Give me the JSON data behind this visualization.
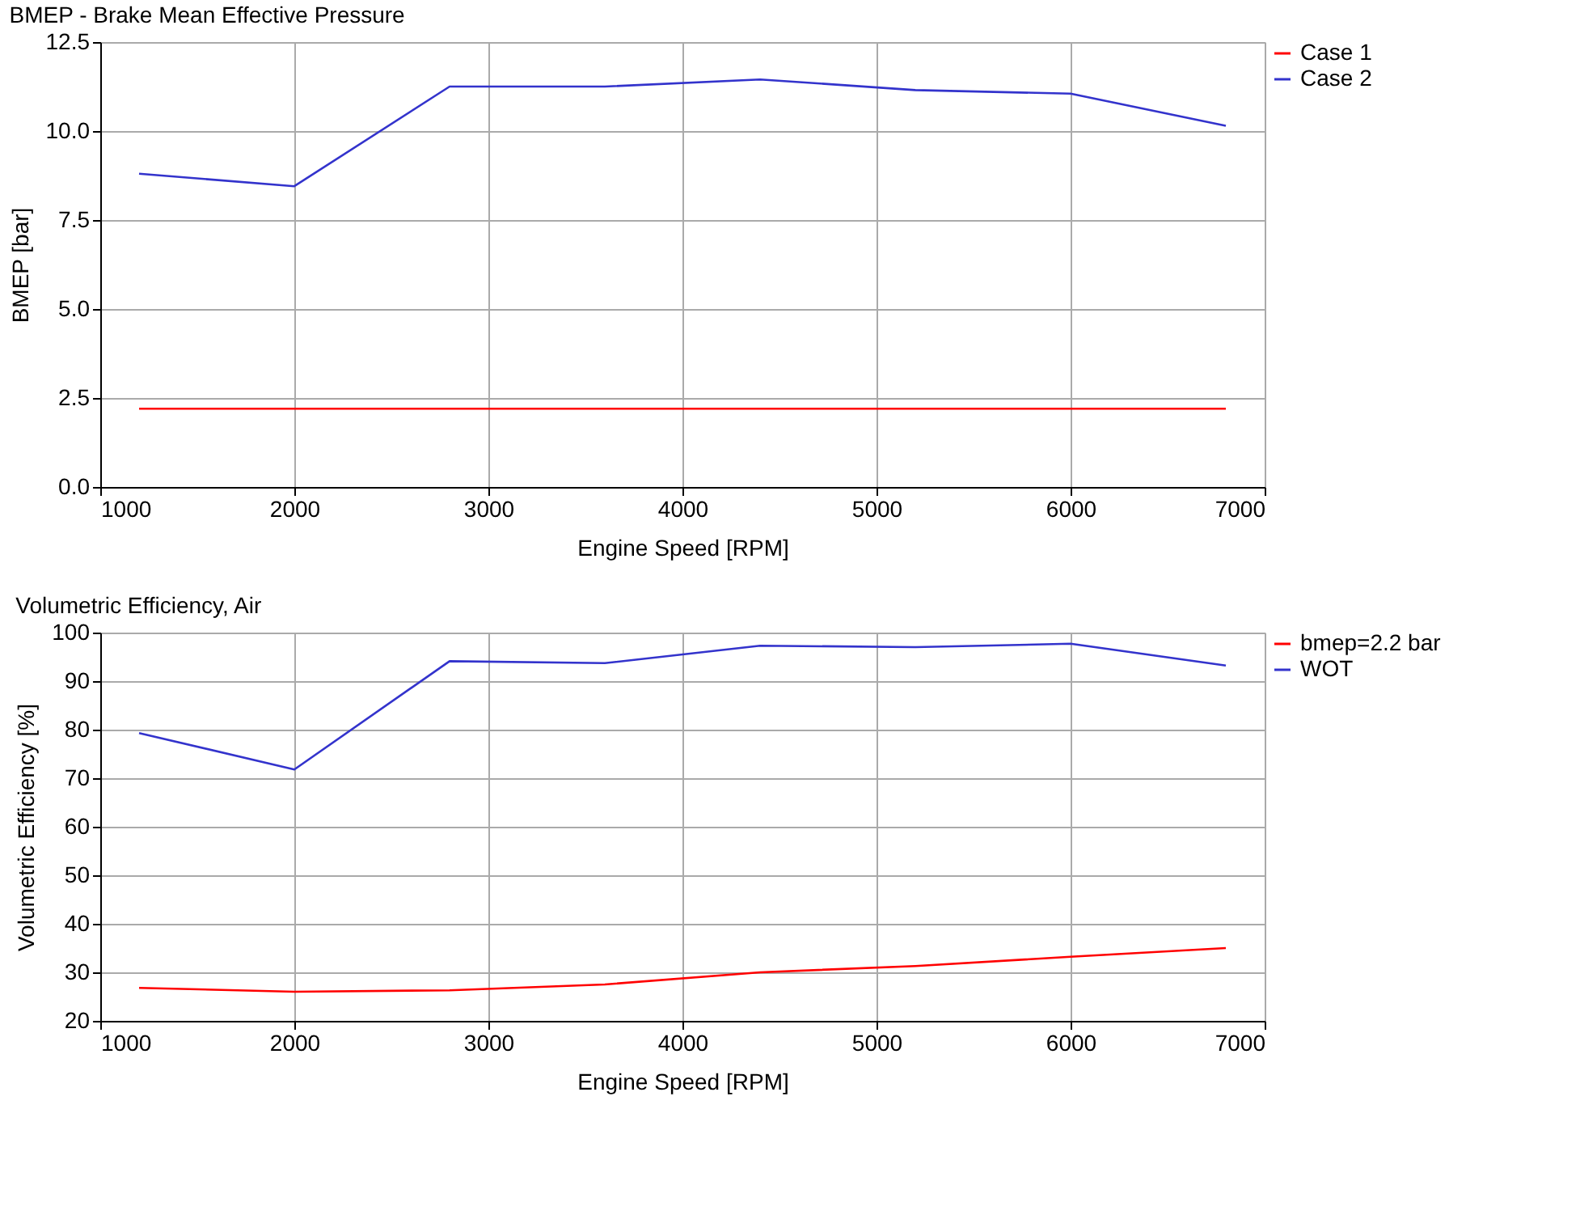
{
  "chart_data": [
    {
      "type": "line",
      "title": "BMEP - Brake Mean Effective Pressure",
      "xlabel": "Engine Speed [RPM]",
      "ylabel": "BMEP [bar]",
      "x": [
        1200,
        2000,
        2800,
        3600,
        4400,
        5200,
        6000,
        6800
      ],
      "series": [
        {
          "name": "Case 1",
          "color": "#ff0000",
          "values": [
            2.2,
            2.2,
            2.2,
            2.2,
            2.2,
            2.2,
            2.2,
            2.2
          ]
        },
        {
          "name": "Case 2",
          "color": "#3333cc",
          "values": [
            8.8,
            8.45,
            11.25,
            11.25,
            11.45,
            11.15,
            11.05,
            10.15
          ]
        }
      ],
      "xlim": [
        1000,
        7000
      ],
      "xticks": [
        1000,
        2000,
        3000,
        4000,
        5000,
        6000,
        7000
      ],
      "ylim": [
        0,
        12.5
      ],
      "yticks": [
        {
          "value": 0,
          "label": "0.0"
        },
        2.5,
        {
          "value": 5,
          "label": "5.0"
        },
        7.5,
        {
          "value": 10,
          "label": "10.0"
        },
        12.5
      ],
      "grid": true,
      "legend": "top right",
      "marker": "none",
      "line_style": "solid"
    },
    {
      "type": "line",
      "title": "Volumetric Efficiency, Air",
      "xlabel": "Engine Speed [RPM]",
      "ylabel": "Volumetric Efficiency [%]",
      "x": [
        1200,
        2000,
        2800,
        3600,
        4400,
        5200,
        6000,
        6800
      ],
      "series": [
        {
          "name": "bmep=2.2 bar",
          "color": "#ff0000",
          "values": [
            26.8,
            26,
            26.3,
            27.5,
            30,
            31.3,
            33.2,
            35
          ]
        },
        {
          "name": "WOT",
          "color": "#3333cc",
          "values": [
            79.3,
            71.8,
            94.1,
            93.7,
            97.3,
            97,
            97.7,
            93.2
          ]
        }
      ],
      "xlim": [
        1000,
        7000
      ],
      "xticks": [
        1000,
        2000,
        3000,
        4000,
        5000,
        6000,
        7000
      ],
      "ylim": [
        20,
        100
      ],
      "yticks": [
        20,
        30,
        40,
        50,
        60,
        70,
        80,
        90,
        100
      ],
      "grid": true,
      "legend": "top right",
      "marker": "none",
      "line_style": "solid"
    }
  ]
}
